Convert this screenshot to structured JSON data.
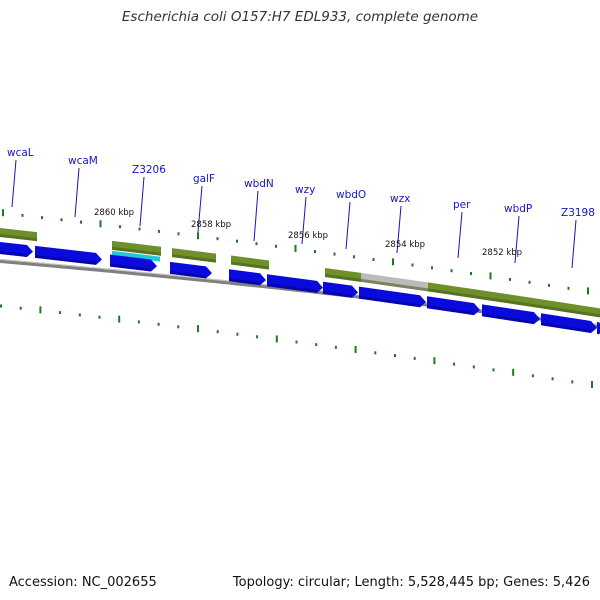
{
  "title": "Escherichia coli O157:H7 EDL933, complete genome",
  "footer": {
    "accession": "Accession: NC_002655",
    "summary": "Topology: circular; Length: 5,528,445 bp; Genes: 5,426"
  },
  "colors": {
    "gene_label": "#1414c8",
    "cds_arrow": "#0a0adc",
    "feature_olive": "#6f8f2a",
    "feature_cyan": "#22c8d8",
    "feature_gray": "#bbbbbb",
    "backbone": "#808080",
    "tick": "#1f7a1f"
  },
  "gene_labels": [
    "wcaL",
    "wcaM",
    "Z3206",
    "galF",
    "wbdN",
    "wzy",
    "wbdO",
    "wzx",
    "per",
    "wbdP",
    "Z3198"
  ],
  "kbp_labels": [
    "2860 kbp",
    "2858 kbp",
    "2856 kbp",
    "2854 kbp",
    "2852 kbp"
  ]
}
